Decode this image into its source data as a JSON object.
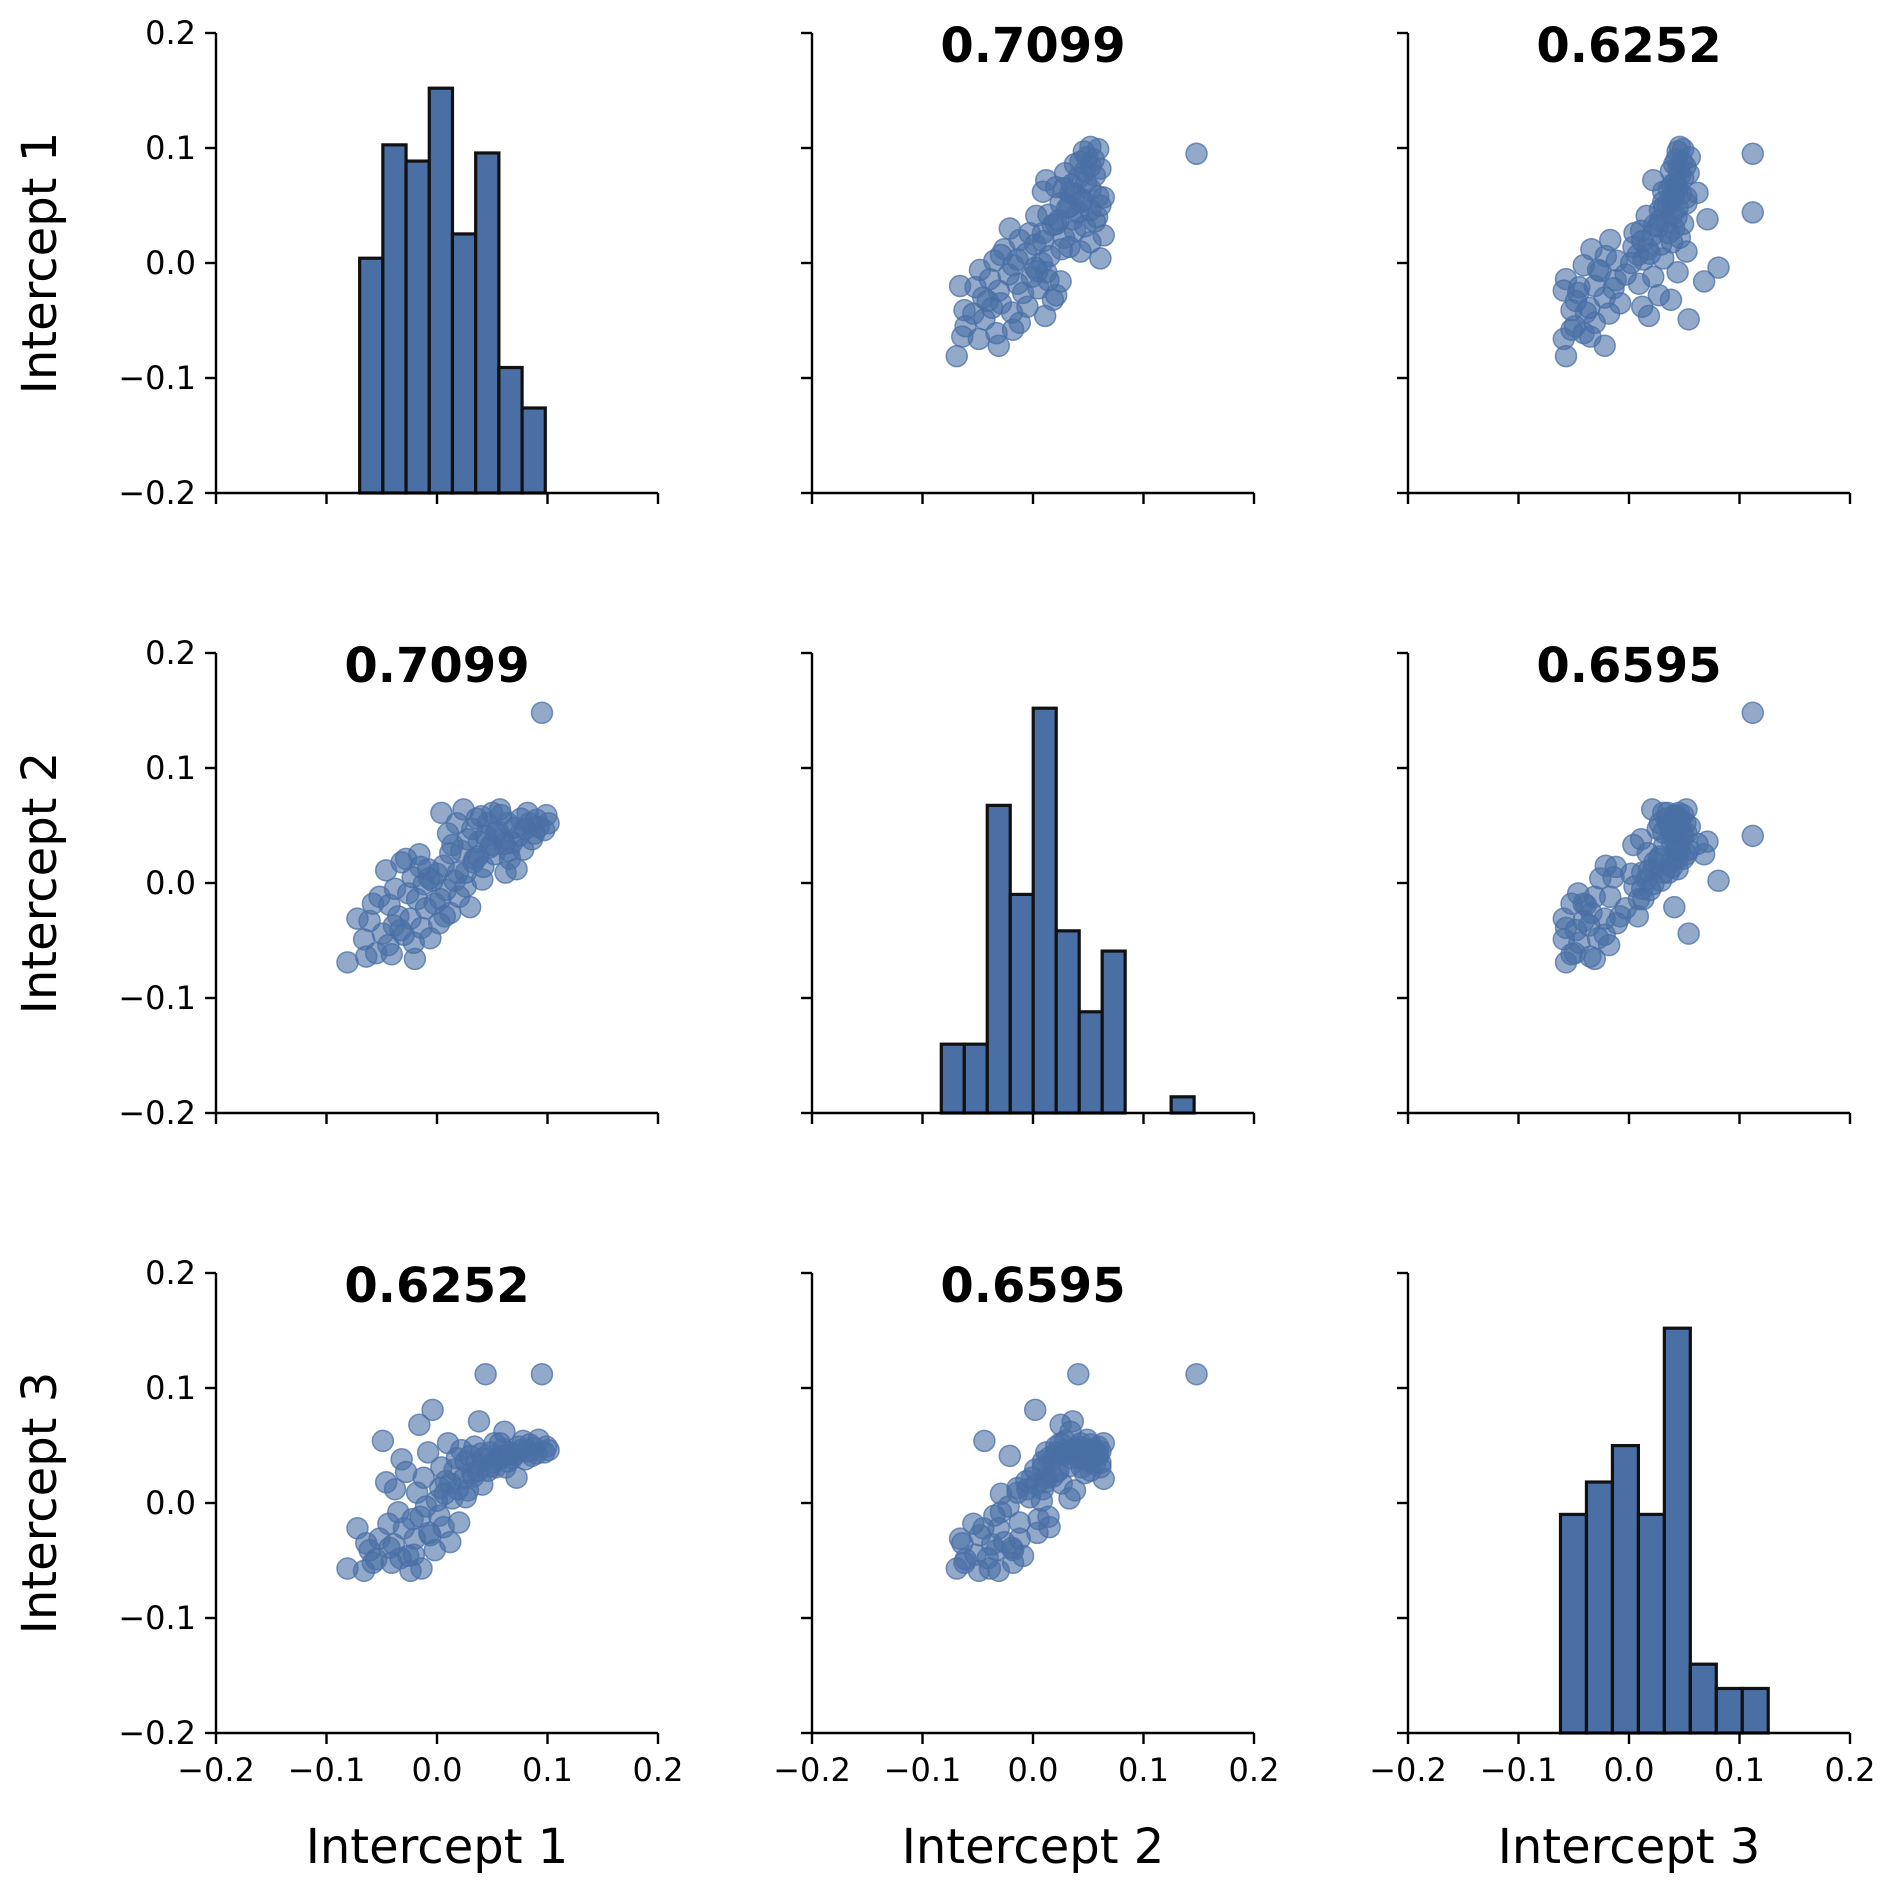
{
  "chart_data": {
    "type": "pairplot",
    "variables": [
      "Intercept 1",
      "Intercept 2",
      "Intercept 3"
    ],
    "xlim": [
      -0.2,
      0.2
    ],
    "ylim": [
      -0.2,
      0.2
    ],
    "ticks": [
      -0.2,
      -0.1,
      0.0,
      0.1,
      0.2
    ],
    "tick_labels": [
      "−0.2",
      "−0.1",
      "0.0",
      "0.1",
      "0.2"
    ],
    "colors": {
      "marker": "#4a6fa5",
      "bar_edge": "#111111"
    },
    "correlations": [
      {
        "row": 0,
        "col": 1,
        "text": "0.7099"
      },
      {
        "row": 0,
        "col": 2,
        "text": "0.6252"
      },
      {
        "row": 1,
        "col": 0,
        "text": "0.7099"
      },
      {
        "row": 1,
        "col": 2,
        "text": "0.6595"
      },
      {
        "row": 2,
        "col": 0,
        "text": "0.6252"
      },
      {
        "row": 2,
        "col": 1,
        "text": "0.6595"
      }
    ],
    "histograms": [
      {
        "variable": "Intercept 1",
        "bin_edges": [
          -0.07,
          -0.049,
          -0.028,
          -0.007,
          0.014,
          0.035,
          0.056,
          0.077,
          0.098
        ],
        "relative_heights": [
          0.58,
          0.86,
          0.82,
          1.0,
          0.64,
          0.84,
          0.31,
          0.21
        ]
      },
      {
        "variable": "Intercept 2",
        "bin_edges": [
          -0.083,
          -0.0622,
          -0.0414,
          -0.0206,
          0.0002,
          0.021,
          0.0418,
          0.0626,
          0.0834,
          0.1042,
          0.125,
          0.1458
        ],
        "relative_heights": [
          0.17,
          0.17,
          0.76,
          0.54,
          1.0,
          0.45,
          0.25,
          0.4,
          0.0,
          0.0,
          0.04
        ]
      },
      {
        "variable": "Intercept 3",
        "bin_edges": [
          -0.062,
          -0.0385,
          -0.015,
          0.0085,
          0.032,
          0.0555,
          0.079,
          0.1025,
          0.126
        ],
        "relative_heights": [
          0.54,
          0.62,
          0.71,
          0.54,
          1.0,
          0.17,
          0.11,
          0.11
        ]
      }
    ],
    "points": [
      [
        -0.081,
        -0.069,
        -0.057
      ],
      [
        -0.072,
        -0.031,
        -0.022
      ],
      [
        -0.066,
        -0.049,
        -0.059
      ],
      [
        -0.061,
        -0.033,
        -0.041
      ],
      [
        -0.055,
        -0.061,
        -0.049
      ],
      [
        -0.052,
        -0.012,
        -0.031
      ],
      [
        -0.049,
        -0.044,
        0.054
      ],
      [
        -0.046,
        0.011,
        0.018
      ],
      [
        -0.043,
        -0.019,
        -0.039
      ],
      [
        -0.041,
        -0.062,
        -0.052
      ],
      [
        -0.038,
        -0.005,
        0.012
      ],
      [
        -0.035,
        -0.029,
        -0.008
      ],
      [
        -0.032,
        0.018,
        0.038
      ],
      [
        -0.03,
        -0.045,
        -0.022
      ],
      [
        -0.028,
        0.021,
        0.027
      ],
      [
        -0.026,
        -0.009,
        -0.046
      ],
      [
        -0.024,
        -0.031,
        -0.059
      ],
      [
        -0.022,
        0.005,
        -0.014
      ],
      [
        -0.02,
        -0.066,
        -0.031
      ],
      [
        -0.018,
        -0.014,
        0.009
      ],
      [
        -0.016,
        0.025,
        0.068
      ],
      [
        -0.014,
        -0.039,
        -0.057
      ],
      [
        -0.012,
        -0.001,
        0.022
      ],
      [
        -0.01,
        -0.022,
        -0.003
      ],
      [
        -0.008,
        0.012,
        0.044
      ],
      [
        -0.006,
        -0.048,
        -0.028
      ],
      [
        -0.004,
        0.002,
        0.081
      ],
      [
        -0.002,
        -0.018,
        -0.041
      ],
      [
        0.0,
        0.008,
        0.002
      ],
      [
        0.002,
        -0.035,
        -0.011
      ],
      [
        0.004,
        0.061,
        0.031
      ],
      [
        0.006,
        0.015,
        -0.021
      ],
      [
        0.008,
        -0.006,
        0.019
      ],
      [
        0.01,
        0.043,
        0.052
      ],
      [
        0.012,
        -0.026,
        -0.034
      ],
      [
        0.014,
        0.033,
        0.004
      ],
      [
        0.016,
        0.002,
        0.029
      ],
      [
        0.018,
        0.052,
        0.039
      ],
      [
        0.02,
        -0.012,
        -0.017
      ],
      [
        0.022,
        0.028,
        0.046
      ],
      [
        0.024,
        0.064,
        0.021
      ],
      [
        0.026,
        0.009,
        0.036
      ],
      [
        0.028,
        0.038,
        0.011
      ],
      [
        0.03,
        -0.021,
        0.041
      ],
      [
        0.032,
        0.047,
        0.026
      ],
      [
        0.034,
        0.021,
        0.049
      ],
      [
        0.036,
        0.056,
        0.034
      ],
      [
        0.038,
        0.036,
        0.071
      ],
      [
        0.04,
        0.058,
        0.043
      ],
      [
        0.042,
        0.014,
        0.039
      ],
      [
        0.044,
        0.041,
        0.112
      ],
      [
        0.046,
        0.052,
        0.028
      ],
      [
        0.048,
        0.031,
        0.044
      ],
      [
        0.05,
        0.061,
        0.035
      ],
      [
        0.052,
        0.025,
        0.052
      ],
      [
        0.055,
        0.045,
        0.038
      ],
      [
        0.058,
        0.059,
        0.041
      ],
      [
        0.06,
        0.038,
        0.047
      ],
      [
        0.062,
        0.009,
        0.031
      ],
      [
        0.064,
        0.052,
        0.036
      ],
      [
        0.066,
        0.021,
        0.044
      ],
      [
        0.068,
        0.035,
        0.039
      ],
      [
        0.07,
        0.048,
        0.042
      ],
      [
        0.072,
        0.012,
        0.022
      ],
      [
        0.074,
        0.041,
        0.049
      ],
      [
        0.076,
        0.056,
        0.046
      ],
      [
        0.078,
        0.029,
        0.054
      ],
      [
        0.08,
        0.047,
        0.038
      ],
      [
        0.082,
        0.061,
        0.045
      ],
      [
        0.084,
        0.052,
        0.051
      ],
      [
        0.086,
        0.038,
        0.041
      ],
      [
        0.088,
        0.043,
        0.048
      ],
      [
        0.09,
        0.055,
        0.043
      ],
      [
        0.092,
        0.049,
        0.055
      ],
      [
        0.095,
        0.148,
        0.112
      ],
      [
        0.097,
        0.046,
        0.044
      ],
      [
        0.099,
        0.059,
        0.049
      ],
      [
        0.101,
        0.052,
        0.046
      ],
      [
        -0.044,
        -0.054,
        -0.018
      ],
      [
        -0.039,
        -0.037,
        -0.036
      ],
      [
        -0.021,
        -0.052,
        -0.045
      ],
      [
        -0.007,
        0.004,
        -0.026
      ],
      [
        0.003,
        -0.014,
        0.013
      ],
      [
        0.012,
        0.026,
        0.017
      ],
      [
        0.026,
        -0.003,
        0.005
      ],
      [
        0.033,
        0.018,
        0.023
      ],
      [
        0.041,
        0.003,
        0.016
      ],
      [
        0.049,
        0.033,
        0.032
      ],
      [
        0.057,
        0.064,
        0.052
      ],
      [
        0.061,
        0.034,
        0.062
      ],
      [
        -0.064,
        -0.064,
        -0.035
      ],
      [
        -0.058,
        -0.018,
        -0.052
      ],
      [
        -0.033,
        -0.041,
        -0.048
      ],
      [
        -0.015,
        0.014,
        -0.012
      ],
      [
        0.007,
        -0.029,
        0.008
      ],
      [
        0.019,
        0.009,
        0.012
      ],
      [
        0.037,
        0.023,
        0.028
      ],
      [
        0.053,
        0.044,
        0.031
      ],
      [
        0.065,
        0.028,
        0.042
      ]
    ]
  }
}
